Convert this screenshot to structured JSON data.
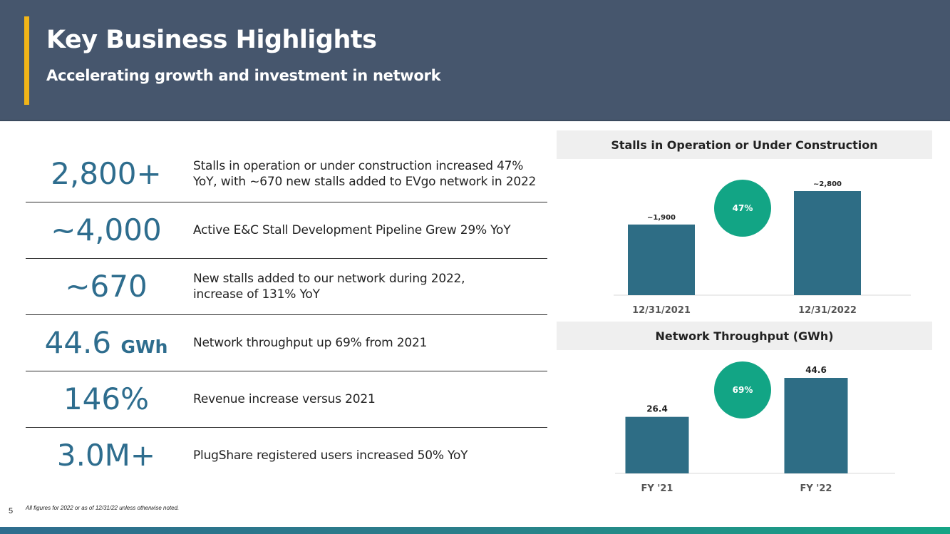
{
  "header": {
    "title": "Key Business Highlights",
    "subtitle": "Accelerating growth and investment in network"
  },
  "metrics": [
    {
      "value": "2,800+",
      "unit": "",
      "desc": "Stalls in operation or under construction increased 47% YoY, with ~670 new stalls added to EVgo network in 2022"
    },
    {
      "value": "~4,000",
      "unit": "",
      "desc": "Active E&C Stall Development Pipeline Grew 29% YoY"
    },
    {
      "value": "~670",
      "unit": "",
      "desc": "New stalls added to our network during 2022, increase of 131% YoY"
    },
    {
      "value": "44.6",
      "unit": "GWh",
      "desc": "Network throughput up 69% from 2021"
    },
    {
      "value": "146%",
      "unit": "",
      "desc": "Revenue increase versus 2021"
    },
    {
      "value": "3.0M+",
      "unit": "",
      "desc": "PlugShare registered users increased 50% YoY"
    }
  ],
  "chart_data": [
    {
      "type": "bar",
      "title": "Stalls in Operation or Under Construction",
      "categories": [
        "12/31/2021",
        "12/31/2022"
      ],
      "values": [
        1900,
        2800
      ],
      "data_labels": [
        "~1,900",
        "~2,800"
      ],
      "ylim": [
        0,
        2800
      ],
      "badge": "47%",
      "badge_color": "#12a585",
      "bar_color": "#2e6d85",
      "grid": false
    },
    {
      "type": "bar",
      "title": "Network Throughput (GWh)",
      "categories": [
        "FY '21",
        "FY '22"
      ],
      "values": [
        26.4,
        44.6
      ],
      "data_labels": [
        "26.4",
        "44.6"
      ],
      "ylim": [
        0,
        44.6
      ],
      "badge": "69%",
      "badge_color": "#12a585",
      "bar_color": "#2e6d85",
      "grid": false
    }
  ],
  "footer": {
    "footnote": "All figures for 2022 or as of 12/31/22 unless otherwise noted.",
    "page_number": "5"
  },
  "colors": {
    "header_bg": "#46566d",
    "accent": "#f2b518",
    "metric_text": "#2e6d8e"
  }
}
